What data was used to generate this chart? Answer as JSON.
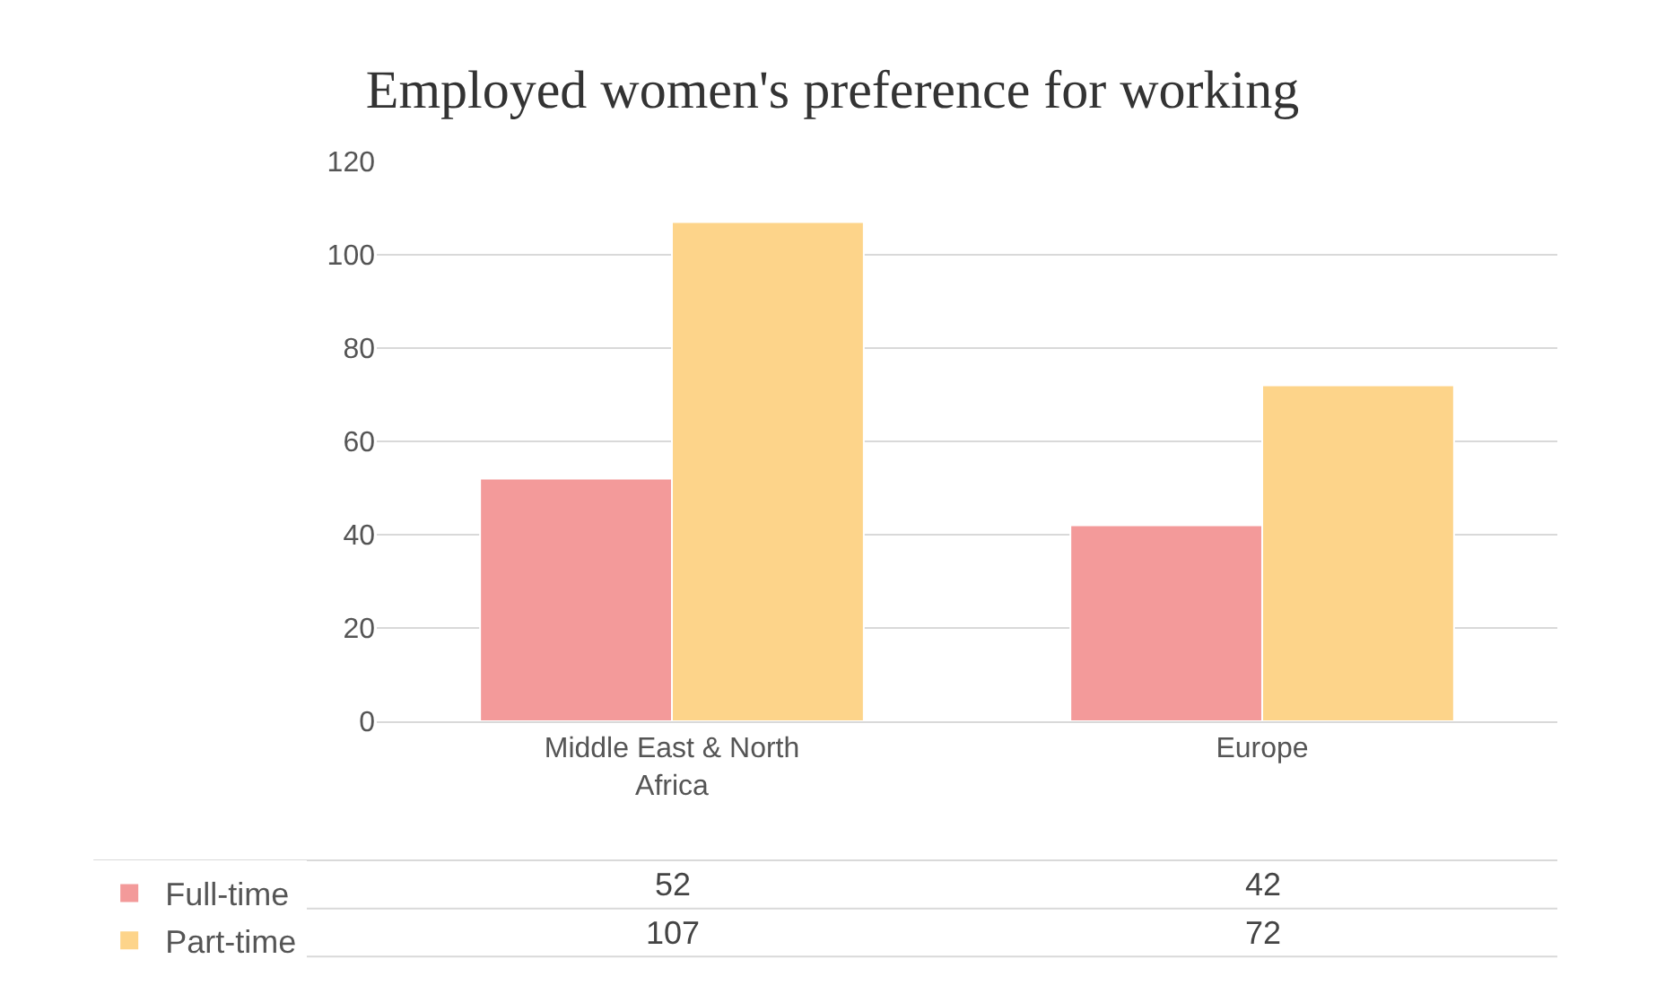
{
  "chart_data": {
    "type": "bar",
    "title": "Employed women's preference for working",
    "categories": [
      "Middle East & North Africa",
      "Europe"
    ],
    "series": [
      {
        "name": "Full-time",
        "color": "#f39a9a",
        "values": [
          52,
          42
        ]
      },
      {
        "name": "Part-time",
        "color": "#fdd48a",
        "values": [
          107,
          72
        ]
      }
    ],
    "ylim": [
      0,
      120
    ],
    "yticks": [
      0,
      20,
      40,
      60,
      80,
      100,
      120
    ],
    "grid": "y",
    "legend": "bottom",
    "data_labels": true
  }
}
